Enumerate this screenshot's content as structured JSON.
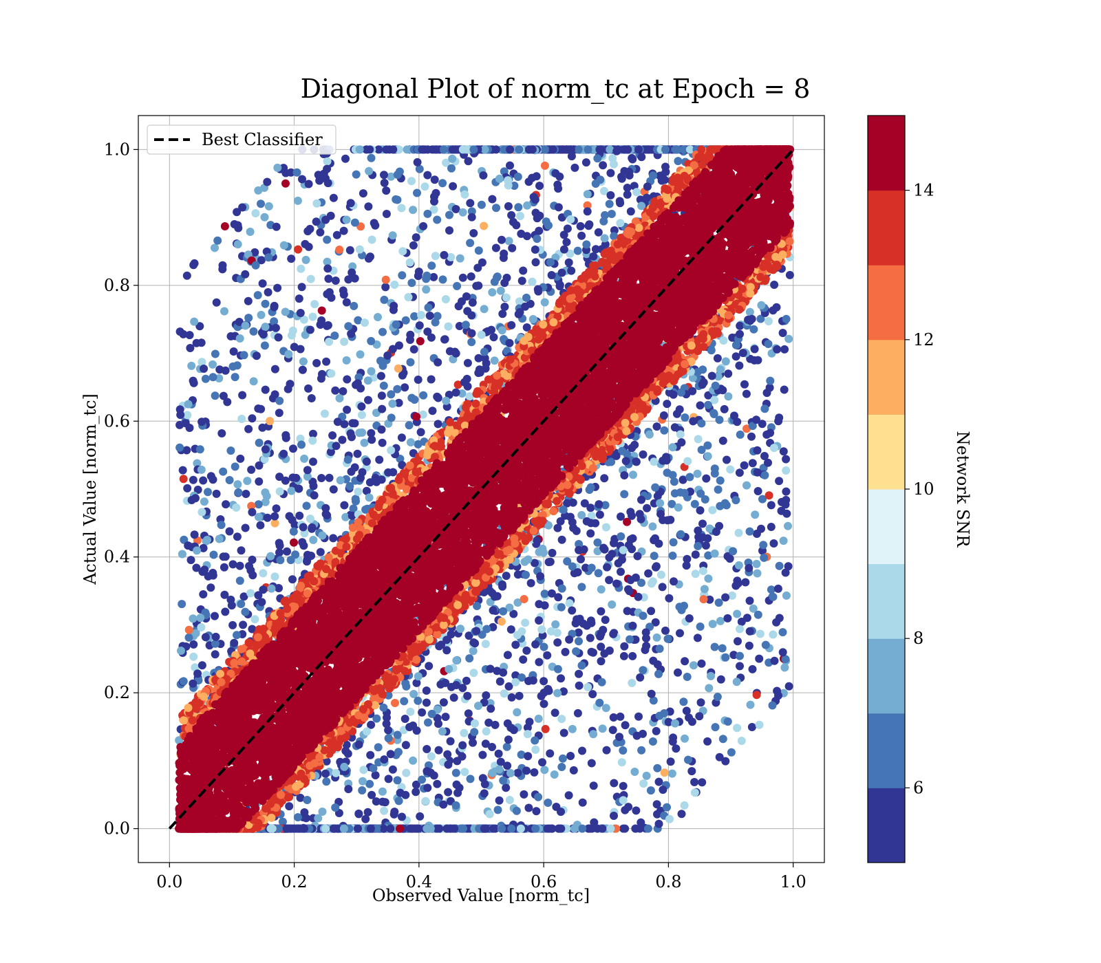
{
  "chart_data": {
    "type": "scatter",
    "title": "Diagonal Plot of norm_tc at Epoch = 8",
    "xlabel": "Observed Value [norm_tc]",
    "ylabel": "Actual Value [norm_tc]",
    "xlim": [
      -0.05,
      1.05
    ],
    "ylim": [
      -0.05,
      1.05
    ],
    "xticks": [
      "0.0",
      "0.2",
      "0.4",
      "0.6",
      "0.8",
      "1.0"
    ],
    "yticks": [
      "0.0",
      "0.2",
      "0.4",
      "0.6",
      "0.8",
      "1.0"
    ],
    "grid": true,
    "legend": {
      "placement": "upper-left",
      "entries": [
        "Best Classifier"
      ]
    },
    "reference_line": {
      "label": "Best Classifier",
      "style": "dashed",
      "color": "#000000",
      "x": [
        0,
        1
      ],
      "y": [
        0,
        1
      ]
    },
    "colorbar": {
      "label": "Network SNR",
      "range": [
        5,
        15
      ],
      "ticks": [
        "6",
        "8",
        "10",
        "12",
        "14"
      ],
      "colors": [
        "#313695",
        "#4575b4",
        "#74add1",
        "#abd9e9",
        "#e0f3f8",
        "#fee090",
        "#fdae61",
        "#f46d43",
        "#d73027",
        "#a50026"
      ]
    },
    "series": [
      {
        "description_from_image": "high SNR points tightly clustered along diagonal",
        "snr_range": [
          14,
          15
        ],
        "band_half_width": 0.11,
        "sample_points": [
          [
            0.05,
            0.02
          ],
          [
            0.1,
            0.12
          ],
          [
            0.2,
            0.18
          ],
          [
            0.3,
            0.33
          ],
          [
            0.4,
            0.38
          ],
          [
            0.5,
            0.52
          ],
          [
            0.6,
            0.58
          ],
          [
            0.7,
            0.72
          ],
          [
            0.8,
            0.78
          ],
          [
            0.9,
            0.92
          ],
          [
            0.97,
            0.99
          ]
        ]
      },
      {
        "description_from_image": "low SNR points widely scattered",
        "snr_range": [
          5,
          10
        ],
        "sample_points": [
          [
            0.05,
            0.72
          ],
          [
            0.08,
            0.89
          ],
          [
            0.14,
            0.95
          ],
          [
            0.06,
            0.61
          ],
          [
            0.93,
            0.73
          ],
          [
            0.91,
            0.06
          ],
          [
            0.98,
            0.22
          ],
          [
            0.55,
            0.99
          ],
          [
            0.42,
            0.97
          ],
          [
            0.28,
            0.85
          ],
          [
            0.7,
            0.05
          ],
          [
            0.85,
            0.25
          ]
        ]
      }
    ]
  }
}
